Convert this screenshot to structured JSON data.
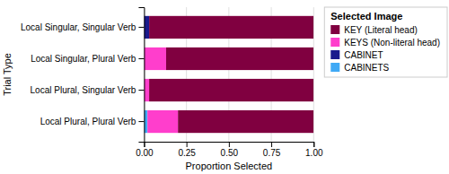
{
  "chart_data": {
    "type": "bar",
    "orientation": "horizontal",
    "stacked": true,
    "categories": [
      "Local Plural, Plural Verb",
      "Local Plural, Singular Verb",
      "Local Singular, Plural Verb",
      "Local Singular, Singular Verb"
    ],
    "series": [
      {
        "name": "CABINETS",
        "color": "#3FA9F5",
        "values": [
          0.02,
          0.0,
          0.0,
          0.0
        ]
      },
      {
        "name": "CABINET",
        "color": "#1A1A8C",
        "values": [
          0.0,
          0.0,
          0.0,
          0.03
        ]
      },
      {
        "name": "KEYS (Non-literal head)",
        "color": "#FF3ECC",
        "values": [
          0.18,
          0.03,
          0.13,
          0.0
        ]
      },
      {
        "name": "KEY (Literal head)",
        "color": "#800040",
        "values": [
          0.8,
          0.97,
          0.87,
          0.97
        ]
      }
    ],
    "legend_title": "Selected Image",
    "xlabel": "Proportion Selected",
    "ylabel": "Trial Type",
    "xlim": [
      0.0,
      1.0
    ],
    "xticks": [
      {
        "value": 0.0,
        "label": "0.00"
      },
      0.25,
      {
        "value": 0.5,
        "label": "0.50"
      },
      0.75,
      {
        "value": 1.0,
        "label": "1.00"
      }
    ],
    "grid": true,
    "legend": "right"
  }
}
